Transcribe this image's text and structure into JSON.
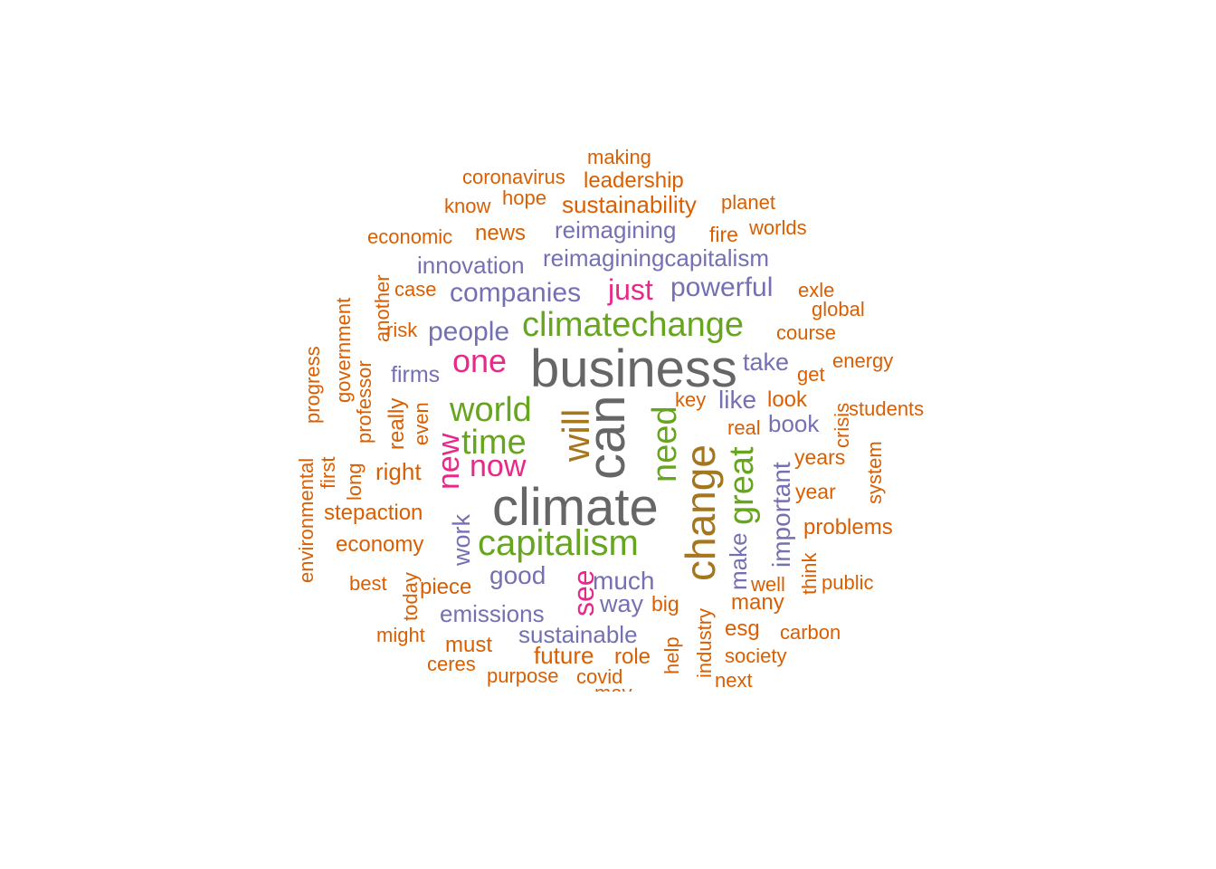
{
  "palette": {
    "orange": "#D95F02",
    "purple": "#7570B3",
    "magenta": "#E7298A",
    "green": "#66A61E",
    "brown": "#A6761D",
    "gray": "#666666"
  },
  "words": [
    {
      "text": "business",
      "weight": 6,
      "color": "gray"
    },
    {
      "text": "can",
      "weight": 6,
      "color": "gray"
    },
    {
      "text": "climate",
      "weight": 6,
      "color": "gray"
    },
    {
      "text": "change",
      "weight": 5,
      "color": "brown"
    },
    {
      "text": "will",
      "weight": 5,
      "color": "brown"
    },
    {
      "text": "climatechange",
      "weight": 4,
      "color": "green"
    },
    {
      "text": "capitalism",
      "weight": 4,
      "color": "green"
    },
    {
      "text": "world",
      "weight": 4,
      "color": "green"
    },
    {
      "text": "time",
      "weight": 4,
      "color": "green"
    },
    {
      "text": "need",
      "weight": 4,
      "color": "green"
    },
    {
      "text": "great",
      "weight": 4,
      "color": "green"
    },
    {
      "text": "one",
      "weight": 3,
      "color": "magenta"
    },
    {
      "text": "just",
      "weight": 3,
      "color": "magenta"
    },
    {
      "text": "new",
      "weight": 3,
      "color": "magenta"
    },
    {
      "text": "now",
      "weight": 3,
      "color": "magenta"
    },
    {
      "text": "see",
      "weight": 3,
      "color": "magenta"
    },
    {
      "text": "companies",
      "weight": 2,
      "color": "purple"
    },
    {
      "text": "people",
      "weight": 2,
      "color": "purple"
    },
    {
      "text": "innovation",
      "weight": 2,
      "color": "purple"
    },
    {
      "text": "reimagining",
      "weight": 2,
      "color": "purple"
    },
    {
      "text": "reimaginingcapitalism",
      "weight": 2,
      "color": "purple"
    },
    {
      "text": "powerful",
      "weight": 2,
      "color": "purple"
    },
    {
      "text": "take",
      "weight": 2,
      "color": "purple"
    },
    {
      "text": "like",
      "weight": 2,
      "color": "purple"
    },
    {
      "text": "book",
      "weight": 2,
      "color": "purple"
    },
    {
      "text": "important",
      "weight": 2,
      "color": "purple"
    },
    {
      "text": "make",
      "weight": 2,
      "color": "purple"
    },
    {
      "text": "firms",
      "weight": 2,
      "color": "purple"
    },
    {
      "text": "work",
      "weight": 2,
      "color": "purple"
    },
    {
      "text": "good",
      "weight": 2,
      "color": "purple"
    },
    {
      "text": "much",
      "weight": 2,
      "color": "purple"
    },
    {
      "text": "way",
      "weight": 2,
      "color": "purple"
    },
    {
      "text": "emissions",
      "weight": 2,
      "color": "purple"
    },
    {
      "text": "sustainable",
      "weight": 2,
      "color": "purple"
    },
    {
      "text": "making",
      "weight": 1,
      "color": "orange"
    },
    {
      "text": "coronavirus",
      "weight": 1,
      "color": "orange"
    },
    {
      "text": "leadership",
      "weight": 1,
      "color": "orange"
    },
    {
      "text": "know",
      "weight": 1,
      "color": "orange"
    },
    {
      "text": "hope",
      "weight": 1,
      "color": "orange"
    },
    {
      "text": "sustainability",
      "weight": 1,
      "color": "orange"
    },
    {
      "text": "planet",
      "weight": 1,
      "color": "orange"
    },
    {
      "text": "economic",
      "weight": 1,
      "color": "orange"
    },
    {
      "text": "news",
      "weight": 1,
      "color": "orange"
    },
    {
      "text": "fire",
      "weight": 1,
      "color": "orange"
    },
    {
      "text": "worlds",
      "weight": 1,
      "color": "orange"
    },
    {
      "text": "case",
      "weight": 1,
      "color": "orange"
    },
    {
      "text": "exle",
      "weight": 1,
      "color": "orange"
    },
    {
      "text": "global",
      "weight": 1,
      "color": "orange"
    },
    {
      "text": "another",
      "weight": 1,
      "color": "orange"
    },
    {
      "text": "government",
      "weight": 1,
      "color": "orange"
    },
    {
      "text": "risk",
      "weight": 1,
      "color": "orange"
    },
    {
      "text": "course",
      "weight": 1,
      "color": "orange"
    },
    {
      "text": "energy",
      "weight": 1,
      "color": "orange"
    },
    {
      "text": "progress",
      "weight": 1,
      "color": "orange"
    },
    {
      "text": "professor",
      "weight": 1,
      "color": "orange"
    },
    {
      "text": "get",
      "weight": 1,
      "color": "orange"
    },
    {
      "text": "look",
      "weight": 1,
      "color": "orange"
    },
    {
      "text": "key",
      "weight": 1,
      "color": "orange"
    },
    {
      "text": "crisis",
      "weight": 1,
      "color": "orange"
    },
    {
      "text": "students",
      "weight": 1,
      "color": "orange"
    },
    {
      "text": "really",
      "weight": 1,
      "color": "orange"
    },
    {
      "text": "even",
      "weight": 1,
      "color": "orange"
    },
    {
      "text": "real",
      "weight": 1,
      "color": "orange"
    },
    {
      "text": "years",
      "weight": 1,
      "color": "orange"
    },
    {
      "text": "system",
      "weight": 1,
      "color": "orange"
    },
    {
      "text": "environmental",
      "weight": 1,
      "color": "orange"
    },
    {
      "text": "first",
      "weight": 1,
      "color": "orange"
    },
    {
      "text": "long",
      "weight": 1,
      "color": "orange"
    },
    {
      "text": "right",
      "weight": 1,
      "color": "orange"
    },
    {
      "text": "year",
      "weight": 1,
      "color": "orange"
    },
    {
      "text": "stepaction",
      "weight": 1,
      "color": "orange"
    },
    {
      "text": "problems",
      "weight": 1,
      "color": "orange"
    },
    {
      "text": "economy",
      "weight": 1,
      "color": "orange"
    },
    {
      "text": "think",
      "weight": 1,
      "color": "orange"
    },
    {
      "text": "best",
      "weight": 1,
      "color": "orange"
    },
    {
      "text": "today",
      "weight": 1,
      "color": "orange"
    },
    {
      "text": "piece",
      "weight": 1,
      "color": "orange"
    },
    {
      "text": "well",
      "weight": 1,
      "color": "orange"
    },
    {
      "text": "public",
      "weight": 1,
      "color": "orange"
    },
    {
      "text": "big",
      "weight": 1,
      "color": "orange"
    },
    {
      "text": "many",
      "weight": 1,
      "color": "orange"
    },
    {
      "text": "might",
      "weight": 1,
      "color": "orange"
    },
    {
      "text": "esg",
      "weight": 1,
      "color": "orange"
    },
    {
      "text": "carbon",
      "weight": 1,
      "color": "orange"
    },
    {
      "text": "must",
      "weight": 1,
      "color": "orange"
    },
    {
      "text": "industry",
      "weight": 1,
      "color": "orange"
    },
    {
      "text": "help",
      "weight": 1,
      "color": "orange"
    },
    {
      "text": "future",
      "weight": 1,
      "color": "orange"
    },
    {
      "text": "role",
      "weight": 1,
      "color": "orange"
    },
    {
      "text": "society",
      "weight": 1,
      "color": "orange"
    },
    {
      "text": "ceres",
      "weight": 1,
      "color": "orange"
    },
    {
      "text": "purpose",
      "weight": 1,
      "color": "orange"
    },
    {
      "text": "covid",
      "weight": 1,
      "color": "orange"
    },
    {
      "text": "next",
      "weight": 1,
      "color": "orange"
    },
    {
      "text": "may",
      "weight": 1,
      "color": "orange"
    }
  ]
}
